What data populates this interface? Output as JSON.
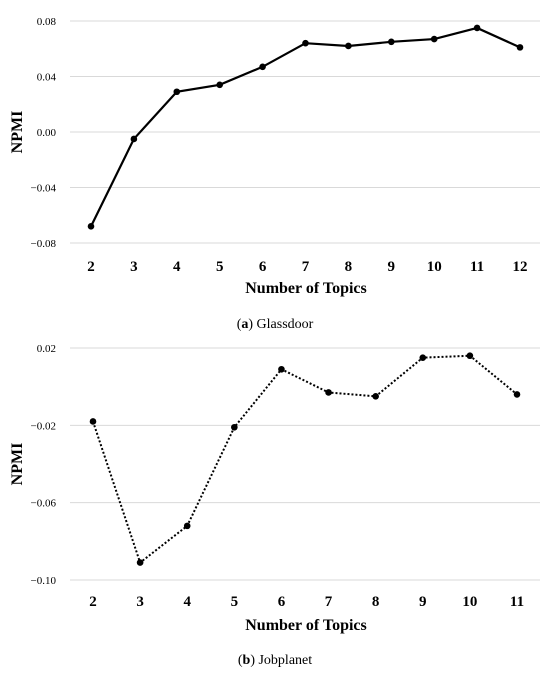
{
  "chart_data": [
    {
      "type": "line",
      "line_style": "solid",
      "ylabel": "NPMI",
      "xlabel": "Number of Topics",
      "caption_label": "a",
      "caption_text": "Glassdoor",
      "categories": [
        "2",
        "3",
        "4",
        "5",
        "6",
        "7",
        "8",
        "9",
        "10",
        "11",
        "12"
      ],
      "values": [
        -0.068,
        -0.005,
        0.029,
        0.034,
        0.047,
        0.064,
        0.062,
        0.065,
        0.067,
        0.075,
        0.061
      ],
      "ylim": [
        -0.08,
        0.08
      ],
      "yticks": [
        0.08,
        0.04,
        0.0,
        -0.04,
        -0.08
      ],
      "ytick_labels": [
        "0.08",
        "0.04",
        "0.00",
        "−0.04",
        "−0.08"
      ],
      "grid": true
    },
    {
      "type": "line",
      "line_style": "dotted",
      "ylabel": "NPMI",
      "xlabel": "Number of Topics",
      "caption_label": "b",
      "caption_text": "Jobplanet",
      "categories": [
        "2",
        "3",
        "4",
        "5",
        "6",
        "7",
        "8",
        "9",
        "10",
        "11"
      ],
      "values": [
        -0.018,
        -0.091,
        -0.072,
        -0.021,
        0.009,
        -0.003,
        -0.005,
        0.015,
        0.016,
        -0.004
      ],
      "ylim": [
        -0.1,
        0.02
      ],
      "yticks": [
        0.02,
        -0.02,
        -0.06,
        -0.1
      ],
      "ytick_labels": [
        "0.02",
        "−0.02",
        "−0.06",
        "−0.10"
      ],
      "grid": true
    }
  ]
}
